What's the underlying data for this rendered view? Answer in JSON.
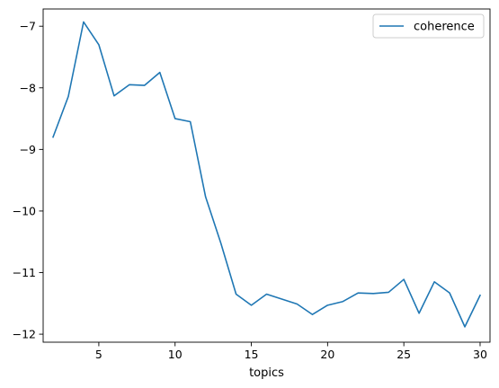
{
  "chart_data": {
    "type": "line",
    "title": "",
    "xlabel": "topics",
    "ylabel": "",
    "xlim": [
      1.35,
      30.65
    ],
    "ylim": [
      -12.13,
      -6.72
    ],
    "x_ticks": [
      5,
      10,
      15,
      20,
      25,
      30
    ],
    "x_tick_labels": [
      "5",
      "10",
      "15",
      "20",
      "25",
      "30"
    ],
    "y_ticks": [
      -12,
      -11,
      -10,
      -9,
      -8,
      -7
    ],
    "y_tick_labels": [
      "−12",
      "−11",
      "−10",
      "−9",
      "−8",
      "−7"
    ],
    "grid": false,
    "legend_position": "top-right",
    "series": [
      {
        "name": "coherence",
        "color": "#1f77b4",
        "x": [
          2,
          3,
          4,
          5,
          6,
          7,
          8,
          9,
          10,
          11,
          12,
          13,
          14,
          15,
          16,
          17,
          18,
          19,
          20,
          21,
          22,
          23,
          24,
          25,
          26,
          27,
          28,
          29,
          30
        ],
        "y": [
          -8.8,
          -8.14,
          -6.93,
          -7.3,
          -8.13,
          -7.95,
          -7.96,
          -7.75,
          -8.5,
          -8.55,
          -9.77,
          -10.52,
          -11.35,
          -11.53,
          -11.35,
          -11.43,
          -11.51,
          -11.68,
          -11.53,
          -11.47,
          -11.33,
          -11.34,
          -11.32,
          -11.11,
          -11.66,
          -11.15,
          -11.33,
          -11.88,
          -11.37
        ]
      }
    ]
  }
}
